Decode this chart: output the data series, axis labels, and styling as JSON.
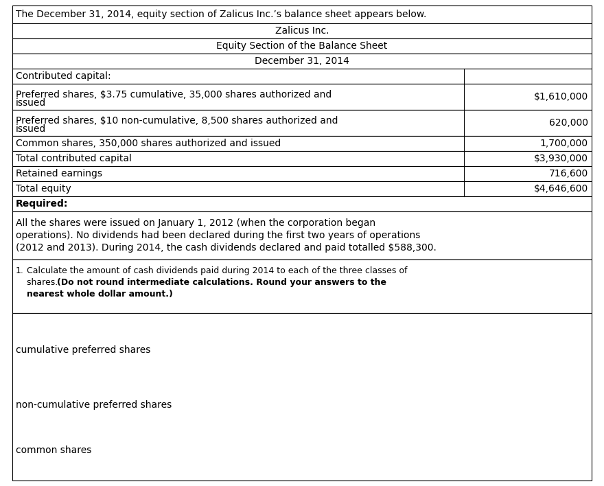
{
  "title_text": "The December 31, 2014, equity section of Zalicus Inc.’s balance sheet appears below.",
  "company_name": "Zalicus Inc.",
  "sheet_title": "Equity Section of the Balance Sheet",
  "date": "December 31, 2014",
  "contributed_capital_label": "Contributed capital:",
  "row1_label1": "Preferred shares, $3.75 cumulative, 35,000 shares authorized and",
  "row1_label2": "issued",
  "row1_value": "$1,610,000",
  "row2_label1": "Preferred shares, $10 non-cumulative, 8,500 shares authorized and",
  "row2_label2": "issued",
  "row2_value": "620,000",
  "row3_label": "Common shares, 350,000 shares authorized and issued",
  "row3_value": "1,700,000",
  "row4_label": "Total contributed capital",
  "row4_value": "$3,930,000",
  "row5_label": "Retained earnings",
  "row5_value": "716,600",
  "row6_label": "Total equity",
  "row6_value": "$4,646,600",
  "required_label": "Required:",
  "req_line1": "All the shares were issued on January 1, 2012 (when the corporation began",
  "req_line2": "operations). No dividends had been declared during the first two years of operations",
  "req_line3": "(2012 and 2013). During 2014, the cash dividends declared and paid totalled $588,300.",
  "q1_prefix": "1.",
  "q1_line1": "Calculate the amount of cash dividends paid during 2014 to each of the three classes of",
  "q1_line2_normal": "shares. ",
  "q1_line2_bold": "(Do not round intermediate calculations. Round your answers to the",
  "q1_line3_bold": "nearest whole dollar amount.)",
  "ans1": "cumulative preferred shares",
  "ans2": "non-cumulative preferred shares",
  "ans3": "common shares",
  "bg_color": "#ffffff",
  "border_color": "#000000",
  "text_color": "#000000"
}
